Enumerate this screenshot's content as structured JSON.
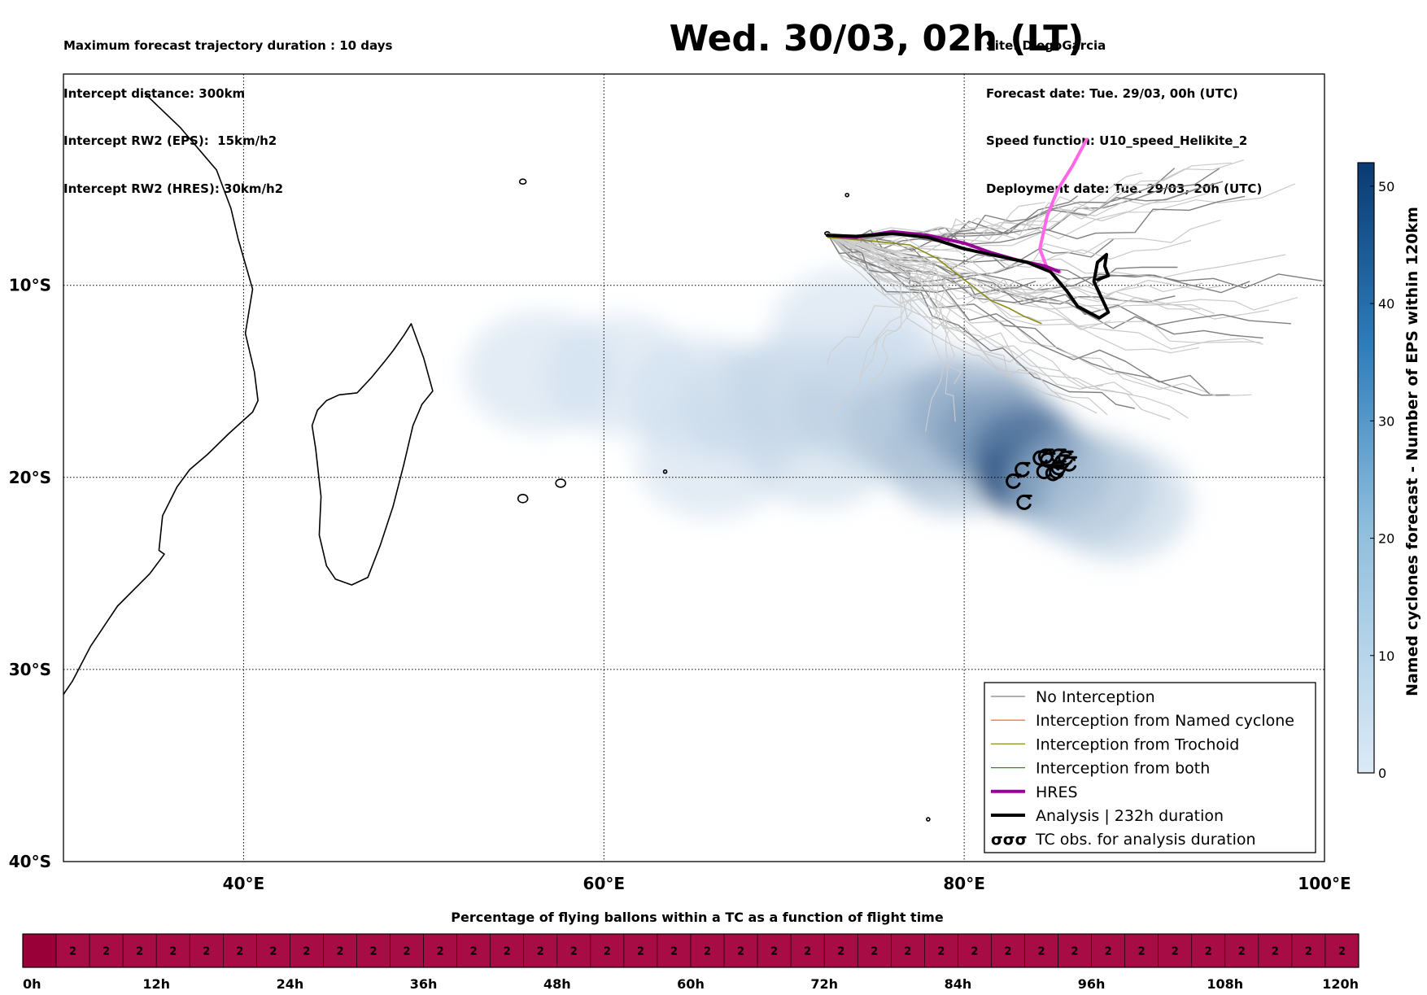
{
  "header": {
    "left_lines": [
      "Maximum forecast trajectory duration : 10 days",
      "Intercept distance: 300km",
      "Intercept RW2 (EPS):  15km/h2",
      "Intercept RW2 (HRES): 30km/h2"
    ],
    "title": "Wed. 30/03, 02h (LT)",
    "right_lines": [
      "Site: DiegoGarcia",
      "Forecast date: Tue. 29/03, 00h (UTC)",
      "Speed function: U10_speed_Helikite_2",
      "Deployment date: Tue. 29/03, 20h (UTC)"
    ]
  },
  "colors": {
    "no_interception": "#7f7f7f",
    "named_cyclone": "#ff5a1f",
    "trochoid": "#8b8b1a",
    "both": "#1a9a1a",
    "hres": "#9a009a",
    "hres_ahead": "#ff66e8",
    "analysis": "#000000",
    "timeline": "#a80c45",
    "timeline_first": "#9a0038"
  },
  "chart_data": [
    {
      "type": "map",
      "xlim": [
        30,
        100
      ],
      "ylim": [
        -40,
        1
      ],
      "xticks": [
        40,
        60,
        80,
        100
      ],
      "xtick_labels": [
        "40°E",
        "60°E",
        "80°E",
        "100°E"
      ],
      "yticks": [
        -10,
        -20,
        -30,
        -40
      ],
      "ytick_labels": [
        "10°S",
        "20°S",
        "30°S",
        "40°S"
      ],
      "grid": true,
      "legend_position": "lower right",
      "legend": [
        {
          "label": "No Interception",
          "style": "no_interception"
        },
        {
          "label": "Interception from Named cyclone",
          "style": "named_cyclone"
        },
        {
          "label": "Interception from Trochoid",
          "style": "trochoid"
        },
        {
          "label": "Interception from both",
          "style": "both"
        },
        {
          "label": "HRES",
          "style": "hres"
        },
        {
          "label": "Analysis | 232h duration",
          "style": "analysis"
        },
        {
          "label": "TC obs. for analysis duration",
          "style": "tc_obs",
          "symbol": "σσσ"
        }
      ],
      "site": {
        "name": "DiegoGarcia",
        "lon": 72.4,
        "lat": -7.3
      },
      "hres_track": {
        "lon": [
          72.4,
          74.0,
          76.0,
          78.0,
          80.0,
          81.5,
          83.0,
          84.5,
          85.3
        ],
        "lat": [
          -7.4,
          -7.5,
          -7.2,
          -7.4,
          -7.8,
          -8.3,
          -8.7,
          -9.0,
          -9.3
        ]
      },
      "hres_ahead": {
        "lon": [
          85.3,
          84.6,
          84.2,
          84.6,
          85.2,
          86.0,
          86.8
        ],
        "lat": [
          -9.3,
          -9.1,
          -8.1,
          -6.4,
          -5.0,
          -3.8,
          -2.4
        ]
      },
      "analysis_track": {
        "lon": [
          72.4,
          74.0,
          76.0,
          78.0,
          80.0,
          82.0,
          83.5,
          84.8,
          85.7,
          86.3,
          87.5,
          88.0,
          87.6,
          87.2,
          87.4,
          87.9,
          87.8,
          88.0,
          87.4
        ],
        "lat": [
          -7.4,
          -7.45,
          -7.3,
          -7.5,
          -8.1,
          -8.5,
          -8.8,
          -9.3,
          -10.3,
          -11.1,
          -11.7,
          -11.4,
          -10.6,
          -9.8,
          -8.8,
          -8.4,
          -9.0,
          -9.5,
          -9.7
        ]
      },
      "trochoid_track": {
        "lon": [
          72.4,
          75.0,
          77.0,
          78.5,
          80.0,
          81.5,
          82.5,
          83.3,
          84.3
        ],
        "lat": [
          -7.5,
          -7.7,
          -7.9,
          -8.6,
          -9.7,
          -10.8,
          -11.2,
          -11.6,
          -12.0
        ]
      },
      "tc_obs": {
        "lon": [
          82.7,
          83.2,
          83.3,
          84.2,
          84.6,
          84.4,
          84.9,
          85.2,
          85.4,
          85.2,
          85.6,
          84.5,
          85.8,
          85.1
        ],
        "lat": [
          -20.2,
          -19.6,
          -21.3,
          -19.0,
          -19.1,
          -19.7,
          -19.8,
          -19.5,
          -19.2,
          -18.9,
          -19.0,
          -18.9,
          -19.3,
          -19.7
        ]
      },
      "eps_density": {
        "colorbar_label": "Named cyclones forecast - Number of EPS within 120km",
        "colorbar_ticks": [
          0,
          10,
          20,
          30,
          40,
          50
        ],
        "colorbar_max": 52,
        "colorscale": [
          "#dceaf7",
          "#0a3a72"
        ],
        "blobs": [
          {
            "lon": 56.5,
            "lat": -14.5,
            "value": 2
          },
          {
            "lon": 61.0,
            "lat": -14.7,
            "value": 2
          },
          {
            "lon": 65.5,
            "lat": -15.8,
            "value": 2
          },
          {
            "lon": 66.0,
            "lat": -19.0,
            "value": 2
          },
          {
            "lon": 68.5,
            "lat": -16.2,
            "value": 3
          },
          {
            "lon": 71.0,
            "lat": -15.5,
            "value": 4
          },
          {
            "lon": 72.0,
            "lat": -18.5,
            "value": 3
          },
          {
            "lon": 74.5,
            "lat": -16.2,
            "value": 5
          },
          {
            "lon": 76.0,
            "lat": -15.0,
            "value": 4
          },
          {
            "lon": 77.5,
            "lat": -17.5,
            "value": 8
          },
          {
            "lon": 79.5,
            "lat": -19.0,
            "value": 10
          },
          {
            "lon": 80.5,
            "lat": -16.5,
            "value": 14
          },
          {
            "lon": 82.0,
            "lat": -17.8,
            "value": 20
          },
          {
            "lon": 83.5,
            "lat": -18.7,
            "value": 32
          },
          {
            "lon": 83.3,
            "lat": -20.0,
            "value": 52
          },
          {
            "lon": 84.8,
            "lat": -19.8,
            "value": 30
          },
          {
            "lon": 86.5,
            "lat": -20.5,
            "value": 10
          },
          {
            "lon": 88.5,
            "lat": -21.3,
            "value": 5
          },
          {
            "lon": 73.5,
            "lat": -12.3,
            "value": 2
          }
        ]
      },
      "coast_points": {
        "africa": {
          "lon": [
            34.5,
            36.5,
            38.5,
            39.3,
            39.7,
            40.5,
            40.1,
            40.6,
            40.8,
            40.5,
            39.2,
            38.0,
            37.0,
            36.3,
            35.5,
            35.3,
            35.6,
            34.8,
            33.0,
            31.5,
            30.5,
            30.0
          ],
          "lat": [
            0.0,
            -1.8,
            -4.0,
            -6.0,
            -7.6,
            -10.2,
            -12.5,
            -14.5,
            -16.0,
            -16.6,
            -17.7,
            -18.8,
            -19.6,
            -20.5,
            -22.0,
            -23.8,
            -24.0,
            -25.0,
            -26.7,
            -28.8,
            -30.6,
            -31.3
          ]
        },
        "madagascar": {
          "lon": [
            49.3,
            50.0,
            50.5,
            49.9,
            49.4,
            48.9,
            48.3,
            47.6,
            46.9,
            46.0,
            45.1,
            44.6,
            44.2,
            44.3,
            44.0,
            43.8,
            44.1,
            44.6,
            45.3,
            46.3,
            47.1,
            47.8,
            48.3,
            48.9,
            49.3
          ],
          "lat": [
            -12.0,
            -13.8,
            -15.5,
            -16.2,
            -17.3,
            -19.3,
            -21.5,
            -23.5,
            -25.2,
            -25.6,
            -25.3,
            -24.6,
            -23.0,
            -21.0,
            -18.5,
            -17.3,
            -16.5,
            -16.0,
            -15.7,
            -15.6,
            -14.8,
            -14.0,
            -13.4,
            -12.6,
            -12.0
          ]
        }
      }
    },
    {
      "type": "heatmap",
      "title": "Percentage of flying ballons within a TC as a function of flight time",
      "cell_count": 40,
      "cell_label": "2",
      "first_cell_label": "",
      "x_ticks": [
        "0h",
        "12h",
        "24h",
        "36h",
        "48h",
        "60h",
        "72h",
        "84h",
        "96h",
        "108h",
        "120h"
      ]
    }
  ]
}
